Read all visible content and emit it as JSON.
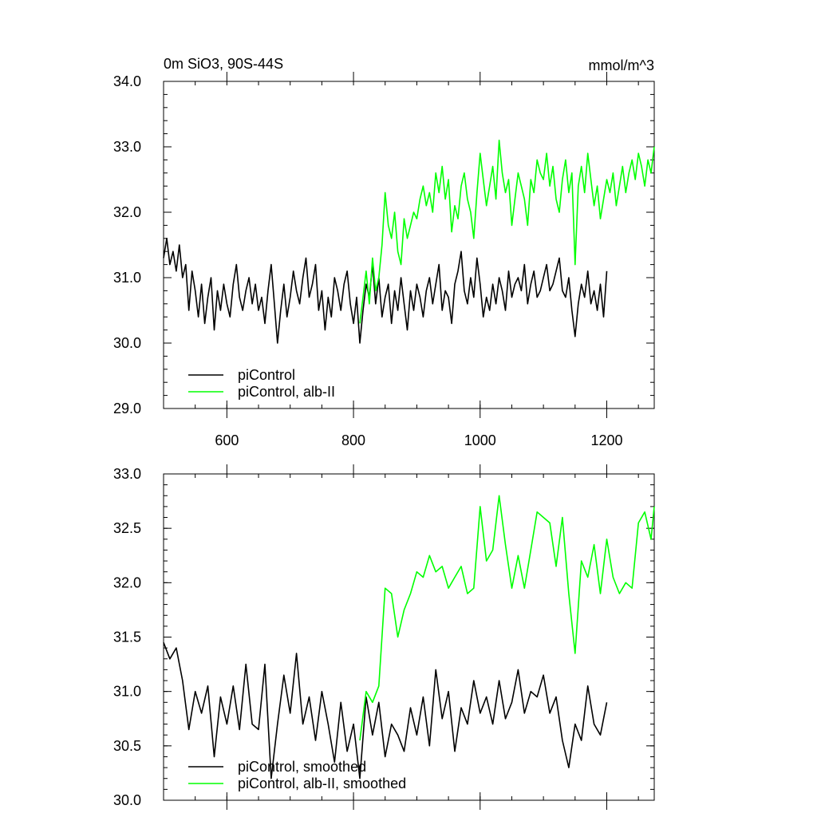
{
  "chart_data": [
    {
      "type": "line",
      "title_left": "0m SiO3, 90S-44S",
      "title_right": "mmol/m^3",
      "xlim": [
        500,
        1275
      ],
      "ylim": [
        29.0,
        34.0
      ],
      "xticks": [
        {
          "value": 600,
          "label": "600"
        },
        {
          "value": 800,
          "label": "800"
        },
        {
          "value": 1000,
          "label": "1000"
        },
        {
          "value": 1200,
          "label": "1200"
        }
      ],
      "yticks": [
        {
          "value": 29.0,
          "label": "29.0"
        },
        {
          "value": 30.0,
          "label": "30.0"
        },
        {
          "value": 31.0,
          "label": "31.0"
        },
        {
          "value": 32.0,
          "label": "32.0"
        },
        {
          "value": 33.0,
          "label": "33.0"
        },
        {
          "value": 34.0,
          "label": "34.0"
        }
      ],
      "legend_position": "lower-left",
      "series": [
        {
          "name": "piControl",
          "color": "#000000",
          "x": [
            500,
            505,
            510,
            515,
            520,
            525,
            530,
            535,
            540,
            545,
            550,
            555,
            560,
            565,
            570,
            575,
            580,
            585,
            590,
            595,
            600,
            605,
            610,
            615,
            620,
            625,
            630,
            635,
            640,
            645,
            650,
            655,
            660,
            665,
            670,
            675,
            680,
            685,
            690,
            695,
            700,
            705,
            710,
            715,
            720,
            725,
            730,
            735,
            740,
            745,
            750,
            755,
            760,
            765,
            770,
            775,
            780,
            785,
            790,
            795,
            800,
            805,
            810,
            815,
            820,
            825,
            830,
            835,
            840,
            845,
            850,
            855,
            860,
            865,
            870,
            875,
            880,
            885,
            890,
            895,
            900,
            905,
            910,
            915,
            920,
            925,
            930,
            935,
            940,
            945,
            950,
            955,
            960,
            965,
            970,
            975,
            980,
            985,
            990,
            995,
            1000,
            1005,
            1010,
            1015,
            1020,
            1025,
            1030,
            1035,
            1040,
            1045,
            1050,
            1055,
            1060,
            1065,
            1070,
            1075,
            1080,
            1085,
            1090,
            1095,
            1100,
            1105,
            1110,
            1115,
            1120,
            1125,
            1130,
            1135,
            1140,
            1145,
            1150,
            1155,
            1160,
            1165,
            1170,
            1175,
            1180,
            1185,
            1190,
            1195,
            1200
          ],
          "y": [
            31.3,
            31.6,
            31.2,
            31.4,
            31.1,
            31.5,
            31.0,
            31.2,
            30.5,
            31.1,
            30.8,
            30.4,
            30.9,
            30.3,
            30.7,
            31.0,
            30.2,
            30.8,
            30.5,
            30.9,
            30.6,
            30.4,
            30.9,
            31.2,
            30.7,
            30.5,
            30.8,
            31.0,
            30.6,
            30.9,
            30.5,
            30.7,
            30.3,
            30.8,
            31.2,
            30.6,
            30.0,
            30.5,
            30.9,
            30.4,
            30.7,
            31.1,
            30.8,
            30.6,
            31.0,
            31.3,
            30.7,
            30.9,
            31.2,
            30.5,
            30.8,
            30.2,
            30.7,
            30.4,
            31.0,
            30.8,
            30.5,
            30.9,
            31.1,
            30.6,
            30.3,
            30.7,
            30.0,
            30.5,
            30.9,
            30.7,
            31.2,
            30.6,
            31.0,
            30.4,
            30.7,
            30.9,
            30.3,
            30.8,
            30.5,
            31.0,
            30.6,
            30.2,
            30.8,
            30.5,
            30.9,
            30.7,
            30.4,
            30.8,
            31.0,
            30.6,
            30.9,
            31.2,
            30.5,
            30.8,
            30.7,
            30.3,
            30.9,
            31.1,
            31.4,
            30.8,
            30.6,
            31.0,
            30.7,
            31.3,
            30.9,
            30.4,
            30.7,
            30.5,
            30.9,
            30.6,
            31.0,
            30.8,
            30.5,
            31.1,
            30.7,
            30.9,
            31.0,
            30.8,
            31.2,
            30.6,
            30.9,
            31.1,
            30.7,
            30.8,
            31.0,
            31.2,
            30.8,
            30.9,
            31.1,
            31.3,
            30.8,
            30.7,
            31.0,
            30.5,
            30.1,
            30.6,
            30.9,
            30.7,
            31.1,
            30.6,
            30.8,
            30.5,
            30.9,
            30.4,
            31.1
          ],
          "y_note": "approximate, read from plot"
        },
        {
          "name": "piControl, alb-II",
          "color": "#00ff00",
          "x": [
            810,
            815,
            820,
            825,
            830,
            835,
            840,
            845,
            850,
            855,
            860,
            865,
            870,
            875,
            880,
            885,
            890,
            895,
            900,
            905,
            910,
            915,
            920,
            925,
            930,
            935,
            940,
            945,
            950,
            955,
            960,
            965,
            970,
            975,
            980,
            985,
            990,
            995,
            1000,
            1005,
            1010,
            1015,
            1020,
            1025,
            1030,
            1035,
            1040,
            1045,
            1050,
            1055,
            1060,
            1065,
            1070,
            1075,
            1080,
            1085,
            1090,
            1095,
            1100,
            1105,
            1110,
            1115,
            1120,
            1125,
            1130,
            1135,
            1140,
            1145,
            1150,
            1155,
            1160,
            1165,
            1170,
            1175,
            1180,
            1185,
            1190,
            1195,
            1200,
            1205,
            1210,
            1215,
            1220,
            1225,
            1230,
            1235,
            1240,
            1245,
            1250,
            1255,
            1260,
            1265,
            1270,
            1275
          ],
          "y": [
            30.3,
            30.7,
            31.1,
            30.6,
            31.3,
            30.8,
            31.0,
            31.5,
            32.3,
            31.8,
            31.6,
            32.0,
            31.4,
            31.2,
            31.9,
            31.6,
            31.8,
            32.0,
            31.9,
            32.2,
            32.4,
            32.1,
            32.3,
            32.0,
            32.6,
            32.3,
            32.7,
            32.2,
            32.5,
            31.7,
            32.1,
            31.9,
            32.4,
            32.6,
            32.2,
            32.0,
            31.6,
            32.3,
            32.9,
            32.5,
            32.1,
            32.4,
            32.7,
            32.2,
            33.1,
            32.6,
            32.3,
            32.5,
            31.8,
            32.2,
            32.6,
            32.4,
            32.2,
            31.8,
            32.5,
            32.3,
            32.8,
            32.6,
            32.5,
            32.9,
            32.4,
            32.7,
            32.2,
            32.0,
            32.5,
            32.8,
            32.3,
            32.6,
            31.2,
            32.4,
            32.7,
            32.3,
            32.9,
            32.5,
            32.1,
            32.4,
            31.9,
            32.2,
            32.5,
            32.3,
            32.6,
            32.1,
            32.4,
            32.7,
            32.3,
            32.6,
            32.8,
            32.5,
            32.9,
            32.7,
            32.4,
            32.8,
            32.6,
            33.0
          ],
          "y_note": "approximate, read from plot"
        }
      ]
    },
    {
      "type": "line",
      "xlim": [
        500,
        1275
      ],
      "ylim": [
        30.0,
        33.0
      ],
      "xticks": [
        {
          "value": 600,
          "label": ""
        },
        {
          "value": 800,
          "label": ""
        },
        {
          "value": 1000,
          "label": ""
        },
        {
          "value": 1200,
          "label": ""
        }
      ],
      "yticks": [
        {
          "value": 30.0,
          "label": "30.0"
        },
        {
          "value": 30.5,
          "label": "30.5"
        },
        {
          "value": 31.0,
          "label": "31.0"
        },
        {
          "value": 31.5,
          "label": "31.5"
        },
        {
          "value": 32.0,
          "label": "32.0"
        },
        {
          "value": 32.5,
          "label": "32.5"
        },
        {
          "value": 33.0,
          "label": "33.0"
        }
      ],
      "legend_position": "lower-left",
      "series": [
        {
          "name": "piControl, smoothed",
          "color": "#000000",
          "x": [
            500,
            510,
            520,
            530,
            540,
            550,
            560,
            570,
            580,
            590,
            600,
            610,
            620,
            630,
            640,
            650,
            660,
            670,
            680,
            690,
            700,
            710,
            720,
            730,
            740,
            750,
            760,
            770,
            780,
            790,
            800,
            810,
            820,
            830,
            840,
            850,
            860,
            870,
            880,
            890,
            900,
            910,
            920,
            930,
            940,
            950,
            960,
            970,
            980,
            990,
            1000,
            1010,
            1020,
            1030,
            1040,
            1050,
            1060,
            1070,
            1080,
            1090,
            1100,
            1110,
            1120,
            1130,
            1140,
            1150,
            1160,
            1170,
            1180,
            1190,
            1200
          ],
          "y": [
            31.45,
            31.3,
            31.4,
            31.1,
            30.65,
            31.0,
            30.8,
            31.05,
            30.4,
            30.95,
            30.7,
            31.05,
            30.65,
            31.25,
            30.7,
            30.65,
            31.25,
            30.2,
            30.7,
            31.15,
            30.8,
            31.35,
            30.7,
            30.95,
            30.55,
            31.0,
            30.7,
            30.35,
            30.9,
            30.45,
            30.7,
            30.2,
            30.95,
            30.6,
            30.9,
            30.4,
            30.7,
            30.6,
            30.45,
            30.85,
            30.6,
            30.95,
            30.5,
            31.2,
            30.75,
            31.0,
            30.45,
            30.85,
            30.7,
            31.1,
            30.8,
            30.95,
            30.7,
            31.1,
            30.75,
            30.9,
            31.2,
            30.8,
            31.0,
            30.95,
            31.15,
            30.8,
            30.95,
            30.55,
            30.3,
            30.7,
            30.55,
            31.05,
            30.7,
            30.6,
            30.9
          ],
          "y_note": "approximate, read from plot"
        },
        {
          "name": "piControl, alb-II, smoothed",
          "color": "#00ff00",
          "x": [
            810,
            820,
            830,
            840,
            850,
            860,
            870,
            880,
            890,
            900,
            910,
            920,
            930,
            940,
            950,
            960,
            970,
            980,
            990,
            1000,
            1010,
            1020,
            1030,
            1040,
            1050,
            1060,
            1070,
            1080,
            1090,
            1100,
            1110,
            1120,
            1130,
            1140,
            1150,
            1160,
            1170,
            1180,
            1190,
            1200,
            1210,
            1220,
            1230,
            1240,
            1250,
            1260,
            1270,
            1275
          ],
          "y": [
            30.55,
            31.0,
            30.9,
            31.05,
            31.95,
            31.9,
            31.5,
            31.75,
            31.9,
            32.1,
            32.05,
            32.25,
            32.1,
            32.15,
            31.95,
            32.05,
            32.15,
            31.9,
            31.95,
            32.7,
            32.2,
            32.3,
            32.8,
            32.35,
            31.95,
            32.25,
            31.95,
            32.3,
            32.65,
            32.6,
            32.55,
            32.15,
            32.6,
            31.9,
            31.35,
            32.2,
            32.05,
            32.35,
            31.9,
            32.4,
            32.05,
            31.9,
            32.0,
            31.95,
            32.55,
            32.65,
            32.4,
            32.7
          ],
          "y_note": "approximate, read from plot"
        }
      ]
    }
  ]
}
